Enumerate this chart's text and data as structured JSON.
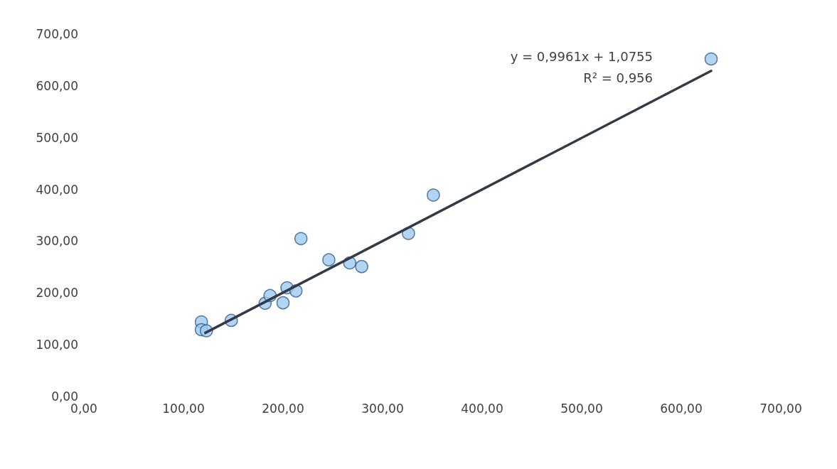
{
  "chart_data": {
    "type": "scatter",
    "grid": false,
    "xlim": [
      0,
      700
    ],
    "ylim": [
      0,
      700
    ],
    "xticks": [
      {
        "value": 0,
        "label": "0,00"
      },
      {
        "value": 100,
        "label": "100,00"
      },
      {
        "value": 200,
        "label": "200,00"
      },
      {
        "value": 300,
        "label": "300,00"
      },
      {
        "value": 400,
        "label": "400,00"
      },
      {
        "value": 500,
        "label": "500,00"
      },
      {
        "value": 600,
        "label": "600,00"
      },
      {
        "value": 700,
        "label": "700,00"
      }
    ],
    "yticks": [
      {
        "value": 0,
        "label": "0,00"
      },
      {
        "value": 100,
        "label": "100,00"
      },
      {
        "value": 200,
        "label": "200,00"
      },
      {
        "value": 300,
        "label": "300,00"
      },
      {
        "value": 400,
        "label": "400,00"
      },
      {
        "value": 500,
        "label": "500,00"
      },
      {
        "value": 600,
        "label": "600,00"
      },
      {
        "value": 700,
        "label": "700,00"
      }
    ],
    "series": [
      {
        "marker": "circle",
        "color": "#9dcbef",
        "x": [
          118,
          118,
          123,
          148,
          182,
          187,
          200,
          204,
          213,
          218,
          246,
          267,
          279,
          326,
          351,
          630
        ],
        "values": [
          144,
          129,
          127,
          147,
          180,
          195,
          181,
          210,
          204,
          305,
          264,
          258,
          251,
          315,
          389,
          652
        ]
      },
      {
        "type": "line",
        "marker": "none",
        "color": "#333a45",
        "x": [
          122,
          630
        ],
        "values": [
          123,
          629
        ]
      }
    ],
    "annotations": [
      "y = 0,9961x + 1,0755",
      "R² = 0,956"
    ]
  }
}
